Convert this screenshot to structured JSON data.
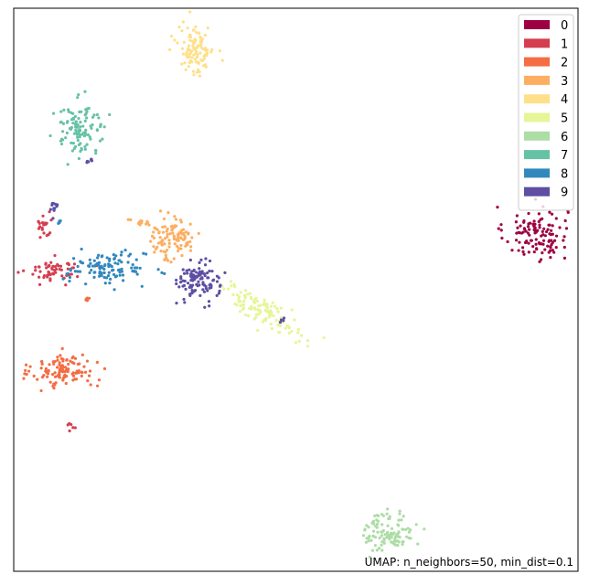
{
  "chart_data": {
    "type": "scatter",
    "title": "",
    "xlabel": "",
    "ylabel": "",
    "annotation": "UMAP: n_neighbors=50, min_dist=0.1",
    "legend_position": "top-right",
    "xlim": [
      0,
      100
    ],
    "ylim": [
      0,
      100
    ],
    "ticks_visible": false,
    "grid": false,
    "series": [
      {
        "name": "0",
        "color": "#9e0142",
        "clusters": [
          {
            "cx": 92.5,
            "cy": 60.0,
            "sx": 2.8,
            "sy": 2.4,
            "n": 120
          }
        ]
      },
      {
        "name": "1",
        "color": "#d53e4f",
        "clusters": [
          {
            "cx": 7.3,
            "cy": 53.5,
            "sx": 2.3,
            "sy": 1.0,
            "n": 60
          },
          {
            "cx": 5.3,
            "cy": 61.5,
            "sx": 0.8,
            "sy": 1.8,
            "n": 20
          },
          {
            "cx": 10.2,
            "cy": 26.0,
            "sx": 0.4,
            "sy": 0.5,
            "n": 6
          }
        ]
      },
      {
        "name": "2",
        "color": "#f46d43",
        "clusters": [
          {
            "cx": 9.0,
            "cy": 35.5,
            "sx": 2.8,
            "sy": 1.5,
            "n": 115
          },
          {
            "cx": 13.0,
            "cy": 48.5,
            "sx": 0.3,
            "sy": 0.4,
            "n": 5
          }
        ]
      },
      {
        "name": "3",
        "color": "#fdae61",
        "clusters": [
          {
            "cx": 28.5,
            "cy": 59.5,
            "sx": 2.3,
            "sy": 1.6,
            "n": 100
          },
          {
            "cx": 22.5,
            "cy": 61.7,
            "sx": 1.2,
            "sy": 0.4,
            "n": 12
          },
          {
            "cx": 27.0,
            "cy": 55.5,
            "sx": 0.8,
            "sy": 0.5,
            "n": 8
          }
        ]
      },
      {
        "name": "4",
        "color": "#fee08b",
        "clusters": [
          {
            "cx": 32.3,
            "cy": 92.7,
            "sx": 1.6,
            "sy": 2.2,
            "n": 110
          }
        ]
      },
      {
        "name": "5",
        "color": "#e6f598",
        "clusters": [
          {
            "cx": 44.0,
            "cy": 46.3,
            "sx": 3.8,
            "sy": 1.2,
            "slope": -0.55,
            "n": 110
          }
        ]
      },
      {
        "name": "6",
        "color": "#abdda4",
        "clusters": [
          {
            "cx": 66.5,
            "cy": 7.0,
            "sx": 2.2,
            "sy": 1.8,
            "n": 110
          }
        ]
      },
      {
        "name": "7",
        "color": "#66c2a5",
        "clusters": [
          {
            "cx": 11.8,
            "cy": 78.7,
            "sx": 2.3,
            "sy": 2.3,
            "n": 110
          }
        ]
      },
      {
        "name": "8",
        "color": "#3288bd",
        "clusters": [
          {
            "cx": 16.5,
            "cy": 53.8,
            "sx": 3.5,
            "sy": 1.4,
            "n": 115
          },
          {
            "cx": 8.2,
            "cy": 62.2,
            "sx": 0.3,
            "sy": 0.3,
            "n": 4
          }
        ]
      },
      {
        "name": "9",
        "color": "#5e4fa2",
        "clusters": [
          {
            "cx": 32.8,
            "cy": 51.5,
            "sx": 1.8,
            "sy": 1.7,
            "n": 110
          },
          {
            "cx": 7.0,
            "cy": 64.5,
            "sx": 0.4,
            "sy": 0.8,
            "n": 12
          },
          {
            "cx": 13.5,
            "cy": 72.8,
            "sx": 0.5,
            "sy": 0.3,
            "n": 6
          },
          {
            "cx": 47.5,
            "cy": 44.8,
            "sx": 0.3,
            "sy": 0.4,
            "n": 4
          }
        ]
      }
    ]
  }
}
